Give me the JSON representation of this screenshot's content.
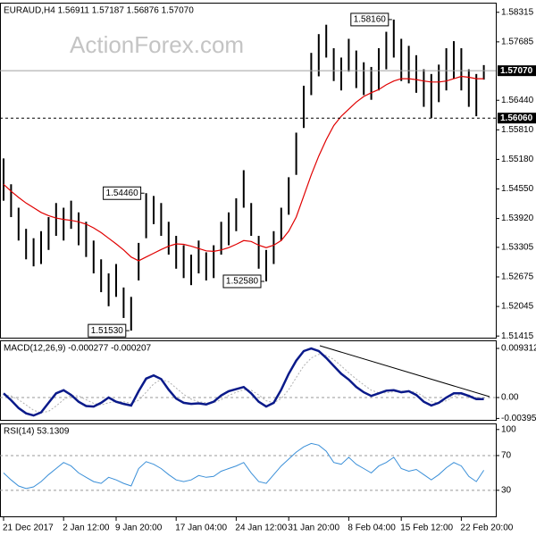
{
  "chart_data": [
    {
      "type": "hilo",
      "title": "EURAUD,H4  1.56911 1.57187 1.56876 1.57070",
      "watermark": "ActionForex.com",
      "bar_color": "#000000",
      "ma_color": "#e00000",
      "high": [
        1.552,
        1.5465,
        1.5415,
        1.537,
        1.535,
        1.5365,
        1.5395,
        1.5425,
        1.5415,
        1.543,
        1.5405,
        1.5385,
        1.5345,
        1.5305,
        1.5275,
        1.5295,
        1.5245,
        1.5225,
        1.534,
        1.5446,
        1.544,
        1.5425,
        1.5385,
        1.5355,
        1.5335,
        1.5315,
        1.5345,
        1.532,
        1.5335,
        1.5385,
        1.5405,
        1.5435,
        1.5495,
        1.5425,
        1.5355,
        1.5325,
        1.5365,
        1.5415,
        1.548,
        1.5575,
        1.5675,
        1.5745,
        1.5785,
        1.5805,
        1.5755,
        1.5735,
        1.5775,
        1.575,
        1.5725,
        1.5715,
        1.5755,
        1.579,
        1.5816,
        1.5775,
        1.576,
        1.574,
        1.571,
        1.57,
        1.572,
        1.5755,
        1.577,
        1.5755,
        1.571,
        1.57,
        1.5719
      ],
      "low": [
        1.543,
        1.5395,
        1.5345,
        1.5305,
        1.529,
        1.5295,
        1.5325,
        1.5355,
        1.5345,
        1.537,
        1.5335,
        1.531,
        1.5275,
        1.5235,
        1.5205,
        1.5225,
        1.518,
        1.5153,
        1.526,
        1.535,
        1.538,
        1.5355,
        1.5315,
        1.5285,
        1.5265,
        1.525,
        1.5275,
        1.526,
        1.5265,
        1.5315,
        1.5335,
        1.5365,
        1.5415,
        1.5355,
        1.5285,
        1.5258,
        1.5295,
        1.5345,
        1.54,
        1.5485,
        1.5585,
        1.5655,
        1.5695,
        1.5735,
        1.5685,
        1.5665,
        1.5705,
        1.567,
        1.5655,
        1.5645,
        1.5665,
        1.571,
        1.5735,
        1.5685,
        1.568,
        1.566,
        1.563,
        1.5606,
        1.564,
        1.5665,
        1.569,
        1.5665,
        1.563,
        1.561,
        1.5688
      ],
      "ma": [
        1.5465,
        1.545,
        1.5437,
        1.5425,
        1.5415,
        1.5405,
        1.5398,
        1.5393,
        1.539,
        1.5388,
        1.5385,
        1.538,
        1.5372,
        1.5362,
        1.535,
        1.5338,
        1.5325,
        1.531,
        1.5302,
        1.531,
        1.5318,
        1.5326,
        1.5333,
        1.5338,
        1.5337,
        1.5333,
        1.5328,
        1.5323,
        1.5322,
        1.5325,
        1.533,
        1.5337,
        1.5345,
        1.5343,
        1.5335,
        1.533,
        1.5335,
        1.5345,
        1.5365,
        1.5395,
        1.544,
        1.5485,
        1.5525,
        1.556,
        1.559,
        1.561,
        1.5625,
        1.564,
        1.5652,
        1.566,
        1.5667,
        1.5677,
        1.5685,
        1.569,
        1.569,
        1.5688,
        1.5685,
        1.5683,
        1.5683,
        1.5685,
        1.569,
        1.5695,
        1.5693,
        1.569,
        1.569
      ],
      "ylim": [
        1.5138,
        1.5852
      ],
      "yticks": [
        1.58315,
        1.57685,
        {
          "value": 1.5644,
          "label": "1.56440"
        },
        {
          "value": 1.5581,
          "label": "1.55810"
        },
        {
          "value": 1.5518,
          "label": "1.55180"
        },
        {
          "value": 1.5455,
          "label": "1.54550"
        },
        {
          "value": 1.5392,
          "label": "1.53920"
        },
        1.53305,
        1.52675,
        1.52045,
        1.51415
      ],
      "price_line": {
        "value": 1.5707,
        "label": "1.57070"
      },
      "level_line": {
        "value": 1.5606,
        "label": "1.56060"
      },
      "annotations": [
        {
          "value": 1.5816,
          "label": "1.58160"
        },
        {
          "value": 1.5446,
          "label": "1.54460"
        },
        {
          "value": 1.5258,
          "label": "1.52580"
        },
        {
          "value": 1.5153,
          "label": "1.51530"
        }
      ]
    },
    {
      "type": "macd",
      "title": "MACD(12,26,9) -0.000277 -0.000207",
      "color": "#0a1a8a",
      "signal_color": "#b0b0b0",
      "values": [
        0.0008,
        -0.0005,
        -0.002,
        -0.003,
        -0.0034,
        -0.0028,
        -0.001,
        0.0008,
        0.0014,
        0.0005,
        -0.0008,
        -0.0016,
        -0.0017,
        -0.001,
        0.0,
        -0.0008,
        -0.0012,
        -0.0015,
        0.0012,
        0.0036,
        0.0042,
        0.0035,
        0.0015,
        -0.0002,
        -0.001,
        -0.0012,
        -0.0011,
        -0.0013,
        -0.0008,
        0.0004,
        0.0012,
        0.0016,
        0.002,
        0.0008,
        -0.0008,
        -0.0017,
        -0.001,
        0.0015,
        0.0045,
        0.007,
        0.0088,
        0.0093,
        0.0088,
        0.0075,
        0.006,
        0.0045,
        0.0034,
        0.002,
        0.001,
        0.0003,
        0.0008,
        0.0013,
        0.0014,
        0.001,
        0.0012,
        0.0005,
        -0.0008,
        -0.0015,
        -0.001,
        0.0,
        0.0008,
        0.0008,
        0.0003,
        -0.0003,
        -0.0003
      ],
      "signal": [
        0.0005,
        0.0003,
        -0.0004,
        -0.0014,
        -0.0024,
        -0.0029,
        -0.0026,
        -0.0016,
        -0.0004,
        0.0004,
        0.0003,
        -0.0004,
        -0.0011,
        -0.0014,
        -0.001,
        -0.0007,
        -0.0008,
        -0.0011,
        -0.0005,
        0.001,
        0.0026,
        0.0034,
        0.003,
        0.0018,
        0.0006,
        -0.0003,
        -0.0008,
        -0.001,
        -0.001,
        -0.0004,
        0.0004,
        0.001,
        0.0015,
        0.0014,
        0.0005,
        -0.0006,
        -0.001,
        -0.0002,
        0.0015,
        0.0038,
        0.006,
        0.0075,
        0.0082,
        0.008,
        0.0072,
        0.006,
        0.0047,
        0.0035,
        0.0024,
        0.0014,
        0.0009,
        0.0009,
        0.0011,
        0.0012,
        0.0012,
        0.001,
        0.0002,
        -0.0008,
        -0.001,
        -0.0006,
        0.0002,
        0.0006,
        0.0005,
        0.0,
        -0.0002
      ],
      "ylim": [
        -0.00423,
        0.01084
      ],
      "yticks": [
        0.009312,
        {
          "value": 0,
          "label": "0.00"
        },
        -0.003958
      ],
      "levels": [
        0
      ]
    },
    {
      "type": "line",
      "title": "RSI(14) 53.1309",
      "color": "#3a8fd8",
      "values": [
        50,
        42,
        35,
        32,
        34,
        40,
        48,
        55,
        62,
        58,
        50,
        45,
        40,
        38,
        45,
        42,
        38,
        35,
        55,
        63,
        60,
        55,
        48,
        42,
        40,
        42,
        47,
        45,
        46,
        52,
        55,
        58,
        62,
        50,
        40,
        38,
        48,
        58,
        66,
        74,
        80,
        84,
        82,
        75,
        62,
        60,
        68,
        60,
        55,
        50,
        58,
        62,
        68,
        55,
        52,
        54,
        48,
        42,
        48,
        56,
        62,
        58,
        46,
        40,
        53.1309
      ],
      "ylim": [
        0,
        107
      ],
      "yticks": [
        100,
        70,
        30
      ],
      "levels": [
        70,
        30
      ],
      "categories": [
        "21 Dec 2017",
        null,
        null,
        null,
        null,
        null,
        null,
        null,
        "2 Jan 12:00",
        null,
        null,
        null,
        null,
        null,
        null,
        "9 Jan 20:00",
        null,
        null,
        null,
        null,
        null,
        null,
        null,
        "17 Jan 04:00",
        null,
        null,
        null,
        null,
        null,
        null,
        null,
        "24 Jan 12:00",
        null,
        null,
        null,
        null,
        null,
        null,
        "31 Jan 20:00",
        null,
        null,
        null,
        null,
        null,
        null,
        null,
        "8 Feb 04:00",
        null,
        null,
        null,
        null,
        null,
        null,
        "15 Feb 12:00",
        null,
        null,
        null,
        null,
        null,
        null,
        null,
        "22 Feb 20:00",
        null,
        null,
        null
      ]
    }
  ]
}
